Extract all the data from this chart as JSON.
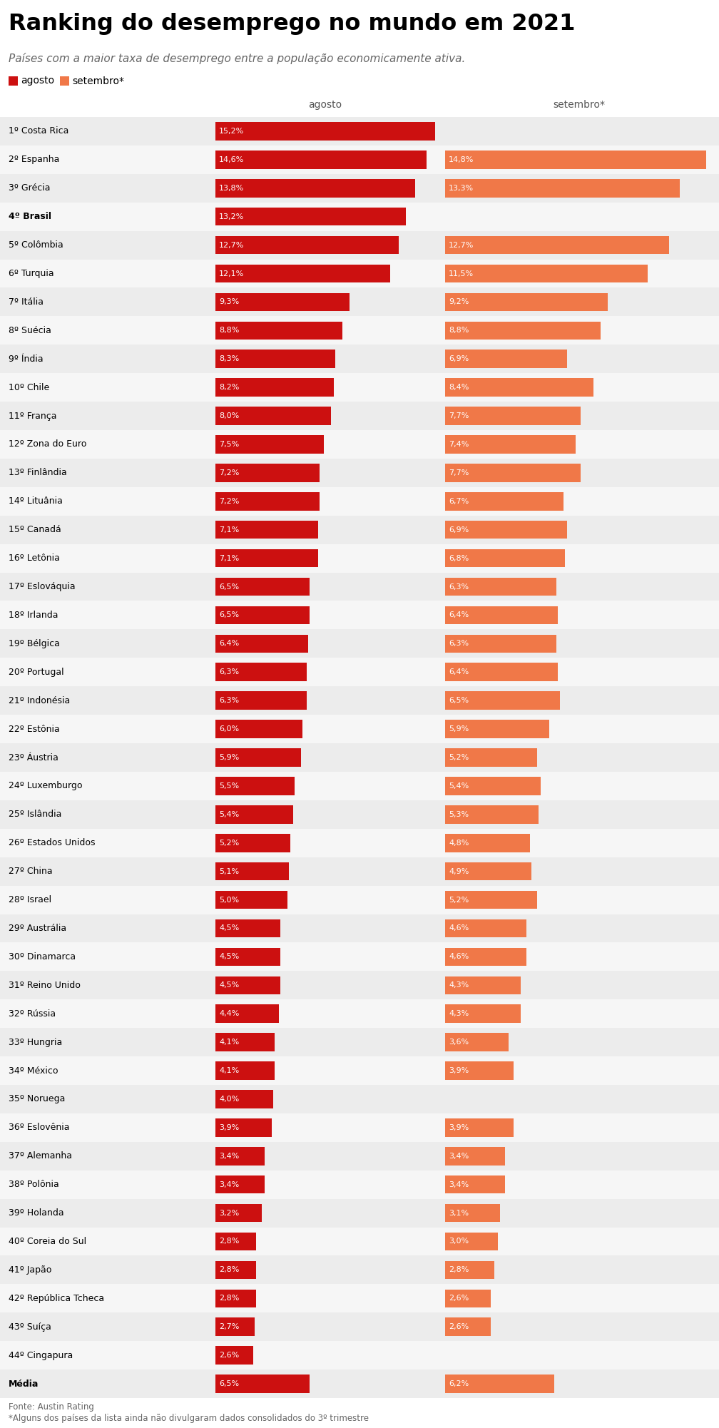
{
  "title": "Ranking do desemprego no mundo em 2021",
  "subtitle": "Países com a maior taxa de desemprego entre a população economicamente ativa.",
  "legend_agosto": "agosto",
  "legend_setembro": "setembro*",
  "col_agosto_label": "agosto",
  "col_setembro_label": "setembro*",
  "agosto_color": "#cc1010",
  "setembro_color": "#f07848",
  "fonte": "Fonte: Austin Rating",
  "nota": "*Alguns dos países da lista ainda não divulgaram dados consolidados do 3º trimestre",
  "countries": [
    {
      "rank": "1º",
      "name": "Costa Rica",
      "bold": false,
      "agosto": 15.2,
      "setembro": null
    },
    {
      "rank": "2º",
      "name": "Espanha",
      "bold": false,
      "agosto": 14.6,
      "setembro": 14.8
    },
    {
      "rank": "3º",
      "name": "Grécia",
      "bold": false,
      "agosto": 13.8,
      "setembro": 13.3
    },
    {
      "rank": "4º",
      "name": "Brasil",
      "bold": true,
      "agosto": 13.2,
      "setembro": null
    },
    {
      "rank": "5º",
      "name": "Colômbia",
      "bold": false,
      "agosto": 12.7,
      "setembro": 12.7
    },
    {
      "rank": "6º",
      "name": "Turquia",
      "bold": false,
      "agosto": 12.1,
      "setembro": 11.5
    },
    {
      "rank": "7º",
      "name": "Itália",
      "bold": false,
      "agosto": 9.3,
      "setembro": 9.2
    },
    {
      "rank": "8º",
      "name": "Suécia",
      "bold": false,
      "agosto": 8.8,
      "setembro": 8.8
    },
    {
      "rank": "9º",
      "name": "Índia",
      "bold": false,
      "agosto": 8.3,
      "setembro": 6.9
    },
    {
      "rank": "10º",
      "name": "Chile",
      "bold": false,
      "agosto": 8.2,
      "setembro": 8.4
    },
    {
      "rank": "11º",
      "name": "França",
      "bold": false,
      "agosto": 8.0,
      "setembro": 7.7
    },
    {
      "rank": "12º",
      "name": "Zona do Euro",
      "bold": false,
      "agosto": 7.5,
      "setembro": 7.4
    },
    {
      "rank": "13º",
      "name": "Finlândia",
      "bold": false,
      "agosto": 7.2,
      "setembro": 7.7
    },
    {
      "rank": "14º",
      "name": "Lituânia",
      "bold": false,
      "agosto": 7.2,
      "setembro": 6.7
    },
    {
      "rank": "15º",
      "name": "Canadá",
      "bold": false,
      "agosto": 7.1,
      "setembro": 6.9
    },
    {
      "rank": "16º",
      "name": "Letônia",
      "bold": false,
      "agosto": 7.1,
      "setembro": 6.8
    },
    {
      "rank": "17º",
      "name": "Eslováquia",
      "bold": false,
      "agosto": 6.5,
      "setembro": 6.3
    },
    {
      "rank": "18º",
      "name": "Irlanda",
      "bold": false,
      "agosto": 6.5,
      "setembro": 6.4
    },
    {
      "rank": "19º",
      "name": "Bélgica",
      "bold": false,
      "agosto": 6.4,
      "setembro": 6.3
    },
    {
      "rank": "20º",
      "name": "Portugal",
      "bold": false,
      "agosto": 6.3,
      "setembro": 6.4
    },
    {
      "rank": "21º",
      "name": "Indonésia",
      "bold": false,
      "agosto": 6.3,
      "setembro": 6.5
    },
    {
      "rank": "22º",
      "name": "Estônia",
      "bold": false,
      "agosto": 6.0,
      "setembro": 5.9
    },
    {
      "rank": "23º",
      "name": "Áustria",
      "bold": false,
      "agosto": 5.9,
      "setembro": 5.2
    },
    {
      "rank": "24º",
      "name": "Luxemburgo",
      "bold": false,
      "agosto": 5.5,
      "setembro": 5.4
    },
    {
      "rank": "25º",
      "name": "Islândia",
      "bold": false,
      "agosto": 5.4,
      "setembro": 5.3
    },
    {
      "rank": "26º",
      "name": "Estados Unidos",
      "bold": false,
      "agosto": 5.2,
      "setembro": 4.8
    },
    {
      "rank": "27º",
      "name": "China",
      "bold": false,
      "agosto": 5.1,
      "setembro": 4.9
    },
    {
      "rank": "28º",
      "name": "Israel",
      "bold": false,
      "agosto": 5.0,
      "setembro": 5.2
    },
    {
      "rank": "29º",
      "name": "Austrália",
      "bold": false,
      "agosto": 4.5,
      "setembro": 4.6
    },
    {
      "rank": "30º",
      "name": "Dinamarca",
      "bold": false,
      "agosto": 4.5,
      "setembro": 4.6
    },
    {
      "rank": "31º",
      "name": "Reino Unido",
      "bold": false,
      "agosto": 4.5,
      "setembro": 4.3
    },
    {
      "rank": "32º",
      "name": "Rússia",
      "bold": false,
      "agosto": 4.4,
      "setembro": 4.3
    },
    {
      "rank": "33º",
      "name": "Hungria",
      "bold": false,
      "agosto": 4.1,
      "setembro": 3.6
    },
    {
      "rank": "34º",
      "name": "México",
      "bold": false,
      "agosto": 4.1,
      "setembro": 3.9
    },
    {
      "rank": "35º",
      "name": "Noruega",
      "bold": false,
      "agosto": 4.0,
      "setembro": null
    },
    {
      "rank": "36º",
      "name": "Eslovênia",
      "bold": false,
      "agosto": 3.9,
      "setembro": 3.9
    },
    {
      "rank": "37º",
      "name": "Alemanha",
      "bold": false,
      "agosto": 3.4,
      "setembro": 3.4
    },
    {
      "rank": "38º",
      "name": "Polônia",
      "bold": false,
      "agosto": 3.4,
      "setembro": 3.4
    },
    {
      "rank": "39º",
      "name": "Holanda",
      "bold": false,
      "agosto": 3.2,
      "setembro": 3.1
    },
    {
      "rank": "40º",
      "name": "Coreia do Sul",
      "bold": false,
      "agosto": 2.8,
      "setembro": 3.0
    },
    {
      "rank": "41º",
      "name": "Japão",
      "bold": false,
      "agosto": 2.8,
      "setembro": 2.8
    },
    {
      "rank": "42º",
      "name": "República Tcheca",
      "bold": false,
      "agosto": 2.8,
      "setembro": 2.6
    },
    {
      "rank": "43º",
      "name": "Suíça",
      "bold": false,
      "agosto": 2.7,
      "setembro": 2.6
    },
    {
      "rank": "44º",
      "name": "Cingapura",
      "bold": false,
      "agosto": 2.6,
      "setembro": null
    }
  ],
  "media": {
    "rank": "Média",
    "name": "",
    "bold": true,
    "agosto": 6.5,
    "setembro": 6.2
  },
  "max_value": 15.2
}
